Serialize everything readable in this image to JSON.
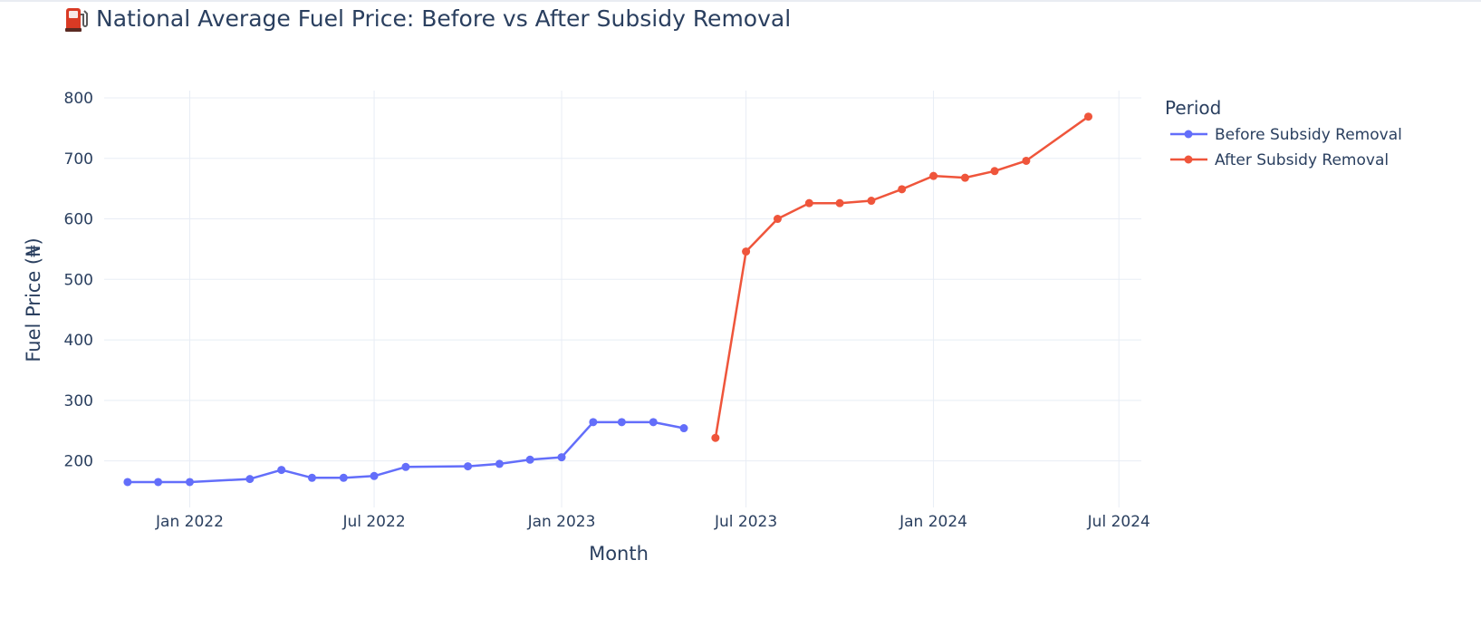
{
  "chart_data": {
    "type": "line",
    "title": "National Average Fuel Price: Before vs After Subsidy Removal",
    "title_icon": "fuel-pump-icon",
    "xlabel": "Month",
    "ylabel": "Fuel Price (₦)",
    "x_axis_type": "date",
    "xlim": [
      "2021-10-09",
      "2024-07-23"
    ],
    "ylim": [
      123,
      812
    ],
    "x_ticks": [
      {
        "value": "2022-01-01",
        "label": "Jan 2022"
      },
      {
        "value": "2022-07-01",
        "label": "Jul 2022"
      },
      {
        "value": "2023-01-01",
        "label": "Jan 2023"
      },
      {
        "value": "2023-07-01",
        "label": "Jul 2023"
      },
      {
        "value": "2024-01-01",
        "label": "Jan 2024"
      },
      {
        "value": "2024-07-01",
        "label": "Jul 2024"
      }
    ],
    "y_ticks": [
      200,
      300,
      400,
      500,
      600,
      700,
      800
    ],
    "grid": true,
    "legend": {
      "title": "Period",
      "placement": "top-right"
    },
    "series": [
      {
        "name": "Before Subsidy Removal",
        "color": "#636efa",
        "points": [
          {
            "x": "2021-11-01",
            "y": 165
          },
          {
            "x": "2021-12-01",
            "y": 165
          },
          {
            "x": "2022-01-01",
            "y": 165
          },
          {
            "x": "2022-03-01",
            "y": 170
          },
          {
            "x": "2022-04-01",
            "y": 185
          },
          {
            "x": "2022-05-01",
            "y": 172
          },
          {
            "x": "2022-06-01",
            "y": 172
          },
          {
            "x": "2022-07-01",
            "y": 175
          },
          {
            "x": "2022-08-01",
            "y": 190
          },
          {
            "x": "2022-10-01",
            "y": 191
          },
          {
            "x": "2022-11-01",
            "y": 195
          },
          {
            "x": "2022-12-01",
            "y": 202
          },
          {
            "x": "2023-01-01",
            "y": 206
          },
          {
            "x": "2023-02-01",
            "y": 264
          },
          {
            "x": "2023-03-01",
            "y": 264
          },
          {
            "x": "2023-04-01",
            "y": 264
          },
          {
            "x": "2023-05-01",
            "y": 254
          }
        ]
      },
      {
        "name": "After Subsidy Removal",
        "color": "#ef553b",
        "points": [
          {
            "x": "2023-06-01",
            "y": 238
          },
          {
            "x": "2023-07-01",
            "y": 546
          },
          {
            "x": "2023-08-01",
            "y": 600
          },
          {
            "x": "2023-09-01",
            "y": 626
          },
          {
            "x": "2023-10-01",
            "y": 626
          },
          {
            "x": "2023-11-01",
            "y": 630
          },
          {
            "x": "2023-12-01",
            "y": 649
          },
          {
            "x": "2024-01-01",
            "y": 671
          },
          {
            "x": "2024-02-01",
            "y": 668
          },
          {
            "x": "2024-03-01",
            "y": 679
          },
          {
            "x": "2024-04-01",
            "y": 696
          },
          {
            "x": "2024-06-01",
            "y": 769
          }
        ]
      }
    ]
  }
}
